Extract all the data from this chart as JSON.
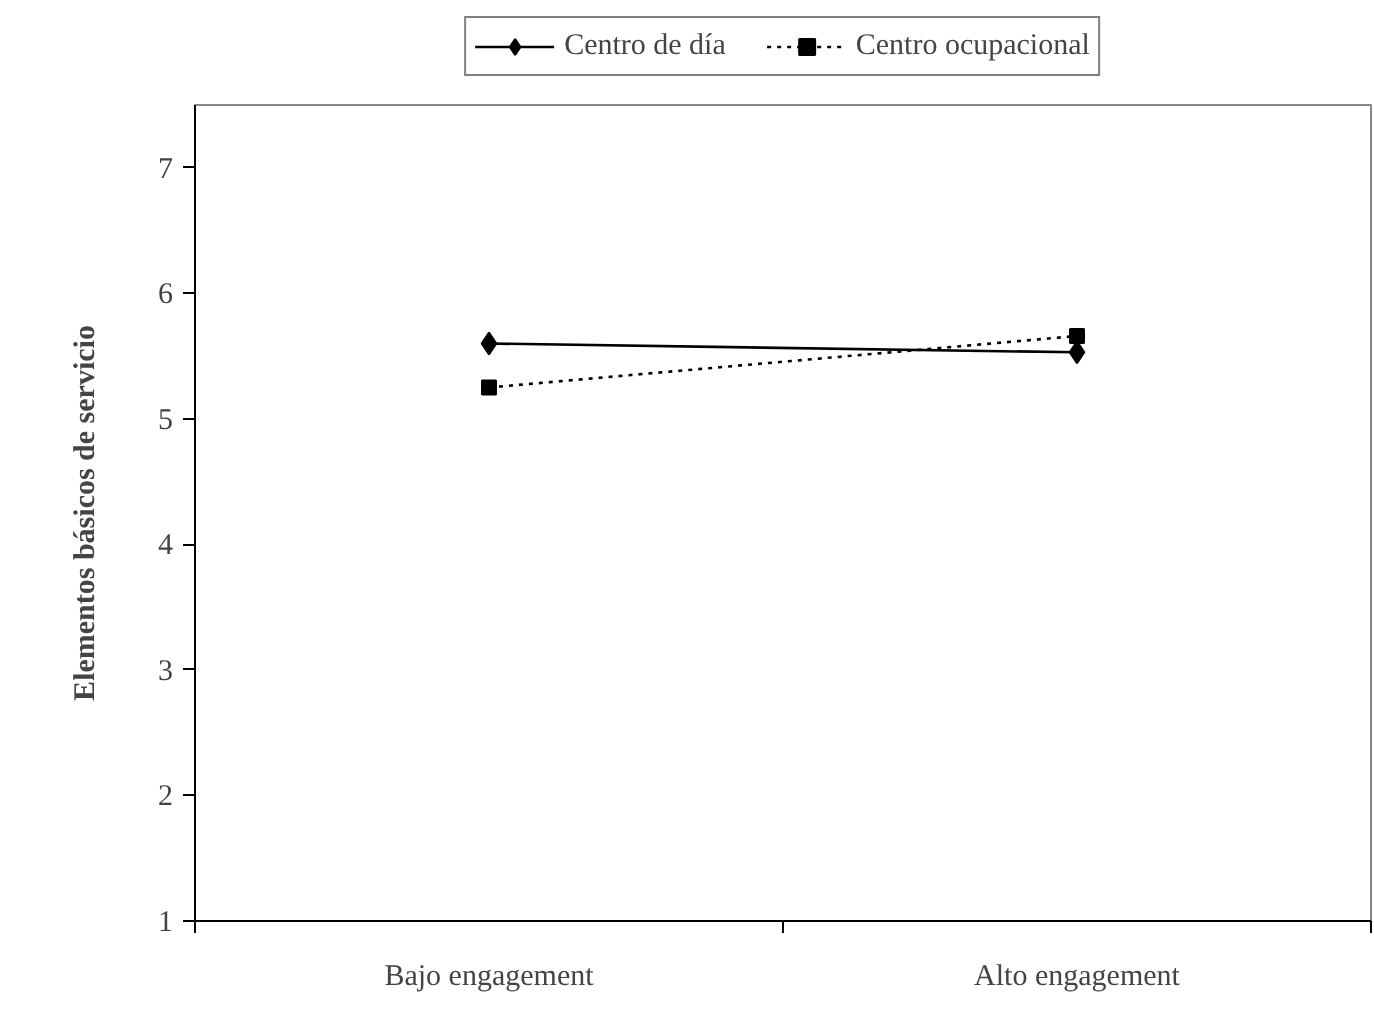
{
  "chart_data": {
    "type": "line",
    "ylabel": "Elementos básicos de servicio",
    "categories": [
      "Bajo engagement",
      "Alto engagement"
    ],
    "series": [
      {
        "name": "Centro de día",
        "color": "#000000",
        "values": [
          5.6,
          5.53
        ],
        "marker": "diamond",
        "line_style": "solid"
      },
      {
        "name": "Centro ocupacional",
        "color": "#000000",
        "values": [
          5.25,
          5.66
        ],
        "marker": "square",
        "line_style": "dotted"
      }
    ],
    "ylim": [
      1,
      7.5
    ],
    "yticks": [
      1,
      2,
      3,
      4,
      5,
      6,
      7
    ],
    "grid": false,
    "legend": "top"
  }
}
